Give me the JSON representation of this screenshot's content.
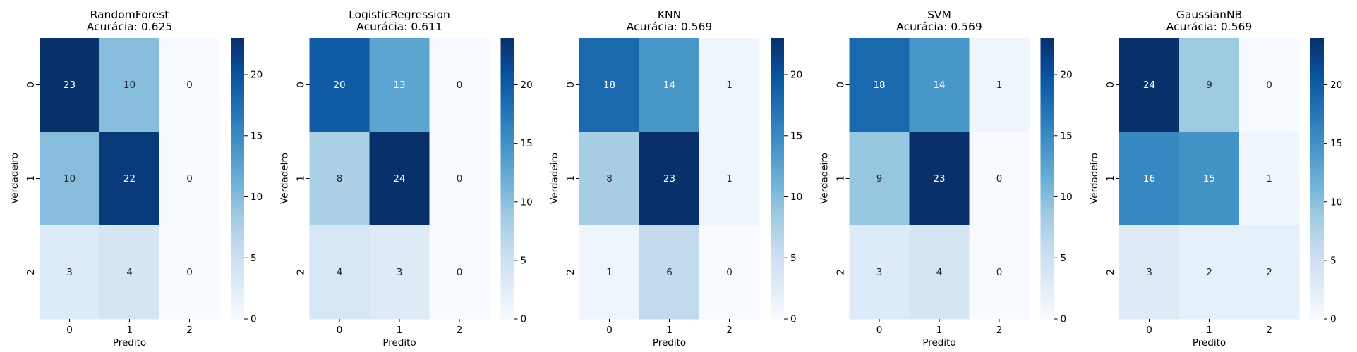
{
  "chart_data": [
    {
      "type": "heatmap",
      "title": "RandomForest",
      "subtitle": "Acurácia: 0.625",
      "xlabel": "Predito",
      "ylabel": "Verdadeiro",
      "x_categories": [
        "0",
        "1",
        "2"
      ],
      "y_categories": [
        "0",
        "1",
        "2"
      ],
      "matrix": [
        [
          23,
          10,
          0
        ],
        [
          10,
          22,
          0
        ],
        [
          3,
          4,
          0
        ]
      ],
      "colorbar_range": [
        0,
        23
      ],
      "colorbar_ticks": [
        0,
        5,
        10,
        15,
        20
      ],
      "colormap": "Blues"
    },
    {
      "type": "heatmap",
      "title": "LogisticRegression",
      "subtitle": "Acurácia: 0.611",
      "xlabel": "Predito",
      "ylabel": "Verdadeiro",
      "x_categories": [
        "0",
        "1",
        "2"
      ],
      "y_categories": [
        "0",
        "1",
        "2"
      ],
      "matrix": [
        [
          20,
          13,
          0
        ],
        [
          8,
          24,
          0
        ],
        [
          4,
          3,
          0
        ]
      ],
      "colorbar_range": [
        0,
        24
      ],
      "colorbar_ticks": [
        0,
        5,
        10,
        15,
        20
      ],
      "colormap": "Blues"
    },
    {
      "type": "heatmap",
      "title": "KNN",
      "subtitle": "Acurácia: 0.569",
      "xlabel": "Predito",
      "ylabel": "Verdadeiro",
      "x_categories": [
        "0",
        "1",
        "2"
      ],
      "y_categories": [
        "0",
        "1",
        "2"
      ],
      "matrix": [
        [
          18,
          14,
          1
        ],
        [
          8,
          23,
          1
        ],
        [
          1,
          6,
          0
        ]
      ],
      "colorbar_range": [
        0,
        23
      ],
      "colorbar_ticks": [
        0,
        5,
        10,
        15,
        20
      ],
      "colormap": "Blues"
    },
    {
      "type": "heatmap",
      "title": "SVM",
      "subtitle": "Acurácia: 0.569",
      "xlabel": "Predito",
      "ylabel": "Verdadeiro",
      "x_categories": [
        "0",
        "1",
        "2"
      ],
      "y_categories": [
        "0",
        "1",
        "2"
      ],
      "matrix": [
        [
          18,
          14,
          1
        ],
        [
          9,
          23,
          0
        ],
        [
          3,
          4,
          0
        ]
      ],
      "colorbar_range": [
        0,
        23
      ],
      "colorbar_ticks": [
        0,
        5,
        10,
        15,
        20
      ],
      "colormap": "Blues"
    },
    {
      "type": "heatmap",
      "title": "GaussianNB",
      "subtitle": "Acurácia: 0.569",
      "xlabel": "Predito",
      "ylabel": "Verdadeiro",
      "x_categories": [
        "0",
        "1",
        "2"
      ],
      "y_categories": [
        "0",
        "1",
        "2"
      ],
      "matrix": [
        [
          24,
          9,
          0
        ],
        [
          16,
          15,
          1
        ],
        [
          3,
          2,
          2
        ]
      ],
      "colorbar_range": [
        0,
        24
      ],
      "colorbar_ticks": [
        0,
        5,
        10,
        15,
        20
      ],
      "colormap": "Blues"
    }
  ]
}
